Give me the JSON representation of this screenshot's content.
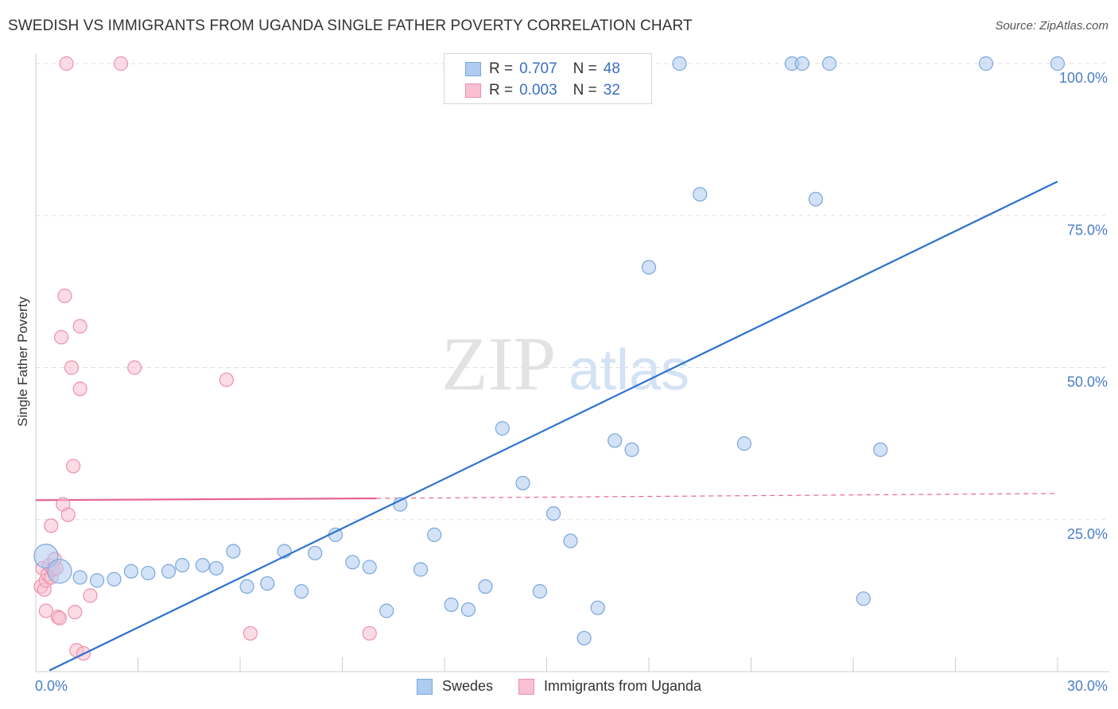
{
  "header": {
    "title": "SWEDISH VS IMMIGRANTS FROM UGANDA SINGLE FATHER POVERTY CORRELATION CHART",
    "source": "Source: ZipAtlas.com"
  },
  "legend": {
    "rows": [
      {
        "r_label": "R =",
        "r_value": "0.707",
        "n_label": "N =",
        "n_value": "48"
      },
      {
        "r_label": "R =",
        "r_value": "0.003",
        "n_label": "N =",
        "n_value": "32"
      }
    ]
  },
  "watermark": {
    "zip": "ZIP",
    "atlas": "atlas"
  },
  "colors": {
    "swedes_fill": "#aecbf0",
    "swedes_stroke": "#7aa6dc",
    "swedes_line": "#2e72cc",
    "uganda_fill": "#f8c0d0",
    "uganda_stroke": "#ee8fab",
    "uganda_line": "#e8648f",
    "tick_text": "#4a7cc7"
  },
  "chart_data": {
    "type": "scatter",
    "title": "SWEDISH VS IMMIGRANTS FROM UGANDA SINGLE FATHER POVERTY CORRELATION CHART",
    "xlabel": "",
    "ylabel": "Single Father Poverty",
    "xlim": [
      0,
      30
    ],
    "ylim": [
      0,
      100
    ],
    "x_tick_labels": [
      "0.0%",
      "30.0%"
    ],
    "y_tick_labels": [
      "25.0%",
      "50.0%",
      "75.0%",
      "100.0%"
    ],
    "y_tick_values": [
      25,
      50,
      75,
      100
    ],
    "grid": "horizontal dashed",
    "legend_position": "top-center and bottom",
    "series": [
      {
        "name": "Swedes",
        "r": 0.707,
        "n": 48,
        "trend": {
          "x": [
            0.4,
            30.0
          ],
          "y": [
            0.2,
            80.6
          ],
          "dashed_from_x": null
        },
        "points": [
          {
            "x": 0.3,
            "y": 19.0,
            "size": "large"
          },
          {
            "x": 0.7,
            "y": 16.5,
            "size": "large"
          },
          {
            "x": 1.3,
            "y": 15.5
          },
          {
            "x": 1.8,
            "y": 15.0
          },
          {
            "x": 2.3,
            "y": 15.2
          },
          {
            "x": 2.8,
            "y": 16.5
          },
          {
            "x": 3.3,
            "y": 16.2
          },
          {
            "x": 3.9,
            "y": 16.5
          },
          {
            "x": 4.3,
            "y": 17.5
          },
          {
            "x": 4.9,
            "y": 17.5
          },
          {
            "x": 5.3,
            "y": 17.0
          },
          {
            "x": 5.8,
            "y": 19.8
          },
          {
            "x": 6.2,
            "y": 14.0
          },
          {
            "x": 6.8,
            "y": 14.5
          },
          {
            "x": 7.3,
            "y": 19.8
          },
          {
            "x": 7.8,
            "y": 13.2
          },
          {
            "x": 8.2,
            "y": 19.5
          },
          {
            "x": 8.8,
            "y": 22.5
          },
          {
            "x": 9.3,
            "y": 18.0
          },
          {
            "x": 9.8,
            "y": 17.2
          },
          {
            "x": 10.3,
            "y": 10.0
          },
          {
            "x": 10.7,
            "y": 27.5
          },
          {
            "x": 11.3,
            "y": 16.8
          },
          {
            "x": 11.7,
            "y": 22.5
          },
          {
            "x": 12.2,
            "y": 11.0
          },
          {
            "x": 12.7,
            "y": 10.2
          },
          {
            "x": 13.2,
            "y": 14.0
          },
          {
            "x": 13.7,
            "y": 40.0
          },
          {
            "x": 14.3,
            "y": 31.0
          },
          {
            "x": 14.8,
            "y": 13.2
          },
          {
            "x": 15.2,
            "y": 26.0
          },
          {
            "x": 15.7,
            "y": 21.5
          },
          {
            "x": 16.1,
            "y": 5.5
          },
          {
            "x": 16.5,
            "y": 10.5
          },
          {
            "x": 17.0,
            "y": 38.0
          },
          {
            "x": 17.5,
            "y": 36.5
          },
          {
            "x": 18.0,
            "y": 66.5
          },
          {
            "x": 18.9,
            "y": 100.0
          },
          {
            "x": 19.5,
            "y": 78.5
          },
          {
            "x": 20.8,
            "y": 37.5
          },
          {
            "x": 22.2,
            "y": 100.0
          },
          {
            "x": 22.5,
            "y": 100.0
          },
          {
            "x": 22.9,
            "y": 77.7
          },
          {
            "x": 23.3,
            "y": 100.0
          },
          {
            "x": 24.3,
            "y": 12.0
          },
          {
            "x": 24.8,
            "y": 36.5
          },
          {
            "x": 27.9,
            "y": 100.0
          },
          {
            "x": 30.0,
            "y": 100.0
          }
        ]
      },
      {
        "name": "Immigrants from Uganda",
        "r": 0.003,
        "n": 32,
        "trend": {
          "x": [
            0.0,
            10.0,
            30.0
          ],
          "y": [
            28.2,
            28.5,
            29.3
          ],
          "dashed_from_x": 10.0
        },
        "points": [
          {
            "x": 0.2,
            "y": 17.0
          },
          {
            "x": 0.15,
            "y": 14.0
          },
          {
            "x": 0.25,
            "y": 13.5
          },
          {
            "x": 0.3,
            "y": 15.0
          },
          {
            "x": 0.35,
            "y": 16.0
          },
          {
            "x": 0.4,
            "y": 17.5
          },
          {
            "x": 0.45,
            "y": 15.5
          },
          {
            "x": 0.5,
            "y": 16.8
          },
          {
            "x": 0.55,
            "y": 18.5
          },
          {
            "x": 0.45,
            "y": 24.0
          },
          {
            "x": 0.6,
            "y": 17.0
          },
          {
            "x": 0.3,
            "y": 10.0
          },
          {
            "x": 0.65,
            "y": 9.0
          },
          {
            "x": 0.7,
            "y": 8.8
          },
          {
            "x": 0.75,
            "y": 55.0
          },
          {
            "x": 0.8,
            "y": 27.5
          },
          {
            "x": 0.85,
            "y": 61.8
          },
          {
            "x": 0.9,
            "y": 100.0
          },
          {
            "x": 0.95,
            "y": 25.8
          },
          {
            "x": 1.05,
            "y": 50.0
          },
          {
            "x": 1.1,
            "y": 33.8
          },
          {
            "x": 1.15,
            "y": 9.8
          },
          {
            "x": 1.2,
            "y": 3.5
          },
          {
            "x": 1.3,
            "y": 46.5
          },
          {
            "x": 1.3,
            "y": 56.8
          },
          {
            "x": 1.4,
            "y": 3.0
          },
          {
            "x": 1.6,
            "y": 12.5
          },
          {
            "x": 2.5,
            "y": 100.0
          },
          {
            "x": 2.9,
            "y": 50.0
          },
          {
            "x": 5.6,
            "y": 48.0
          },
          {
            "x": 6.3,
            "y": 6.3
          },
          {
            "x": 9.8,
            "y": 6.3
          }
        ]
      }
    ]
  }
}
